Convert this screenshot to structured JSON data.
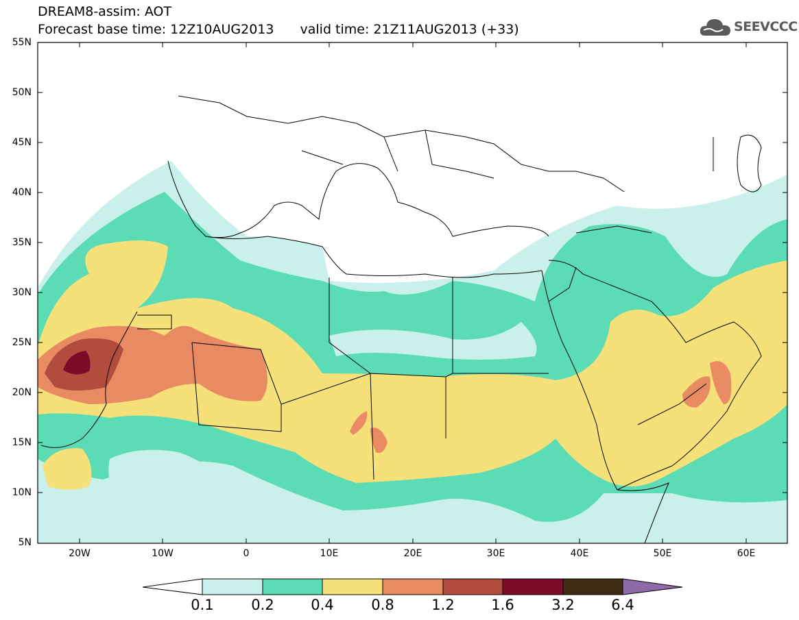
{
  "title_line1": "DREAM8-assim: AOT",
  "base_time": "Forecast base time: 12Z10AUG2013",
  "valid_time": "valid time: 21Z11AUG2013 (+33)",
  "logo": {
    "text": "SEEVCCC",
    "icon": "cloud-icon"
  },
  "map": {
    "lon_range": [
      -25,
      65
    ],
    "lat_range": [
      5,
      55
    ],
    "lat_labels": [
      "55N",
      "50N",
      "45N",
      "40N",
      "35N",
      "30N",
      "25N",
      "20N",
      "15N",
      "10N",
      "5N"
    ],
    "lon_labels": [
      "20W",
      "10W",
      "0",
      "10E",
      "20E",
      "30E",
      "40E",
      "50E",
      "60E"
    ]
  },
  "colorbar": {
    "labels": [
      "0.1",
      "0.2",
      "0.4",
      "0.8",
      "1.2",
      "1.6",
      "3.2",
      "6.4"
    ],
    "colors": [
      "#ffffff",
      "#c9f0ea",
      "#5cdcb4",
      "#f5e07a",
      "#e88a62",
      "#b24c3e",
      "#7e0b2a",
      "#3f2a14",
      "#8f6aa6"
    ]
  }
}
